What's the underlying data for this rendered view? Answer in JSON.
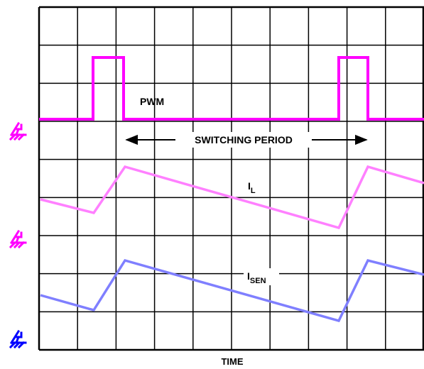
{
  "diagram": {
    "grid": {
      "columns": 10,
      "rows": 9
    },
    "colors": {
      "grid": "#000000",
      "pwm": "#ff00ff",
      "inductor_current": "#ff80ff",
      "sense_current": "#7f7fff",
      "ground_marker_1": "#ff00ff",
      "ground_marker_2": "#ff00ff",
      "ground_marker_3": "#0000ff"
    },
    "labels": {
      "pwm": "PWM",
      "switching_period": "SWITCHING PERIOD",
      "inductor_current_main": "I",
      "inductor_current_sub": "L",
      "sense_current_main": "I",
      "sense_current_sub": "SEN",
      "x_axis": "TIME"
    },
    "icons": [
      "ground-probe-icon",
      "ground-probe-icon",
      "ground-probe-icon"
    ]
  }
}
